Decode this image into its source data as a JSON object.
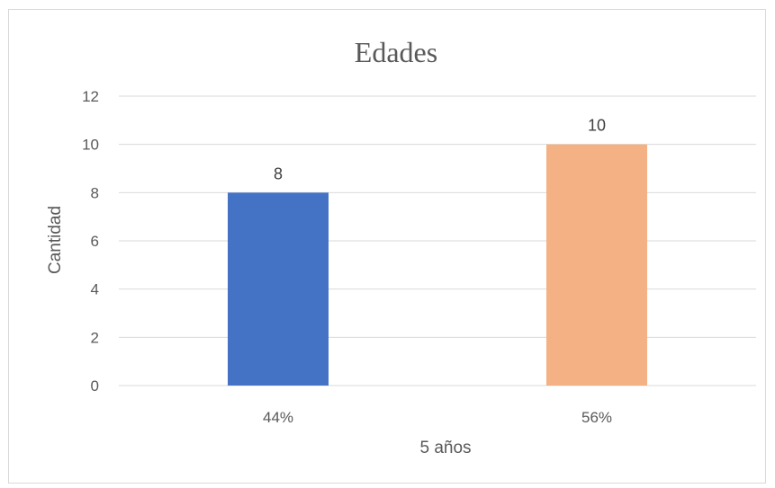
{
  "chart_data": {
    "type": "bar",
    "title": "Edades",
    "xlabel": "5 años",
    "ylabel": "Cantidad",
    "categories": [
      "44%",
      "56%"
    ],
    "values": [
      8,
      10
    ],
    "data_labels": [
      "8",
      "10"
    ],
    "colors": [
      "#4472c4",
      "#f4b183"
    ],
    "ylim": [
      0,
      12
    ],
    "yticks": [
      0,
      2,
      4,
      6,
      8,
      10,
      12
    ],
    "grid": true,
    "legend": "none"
  }
}
